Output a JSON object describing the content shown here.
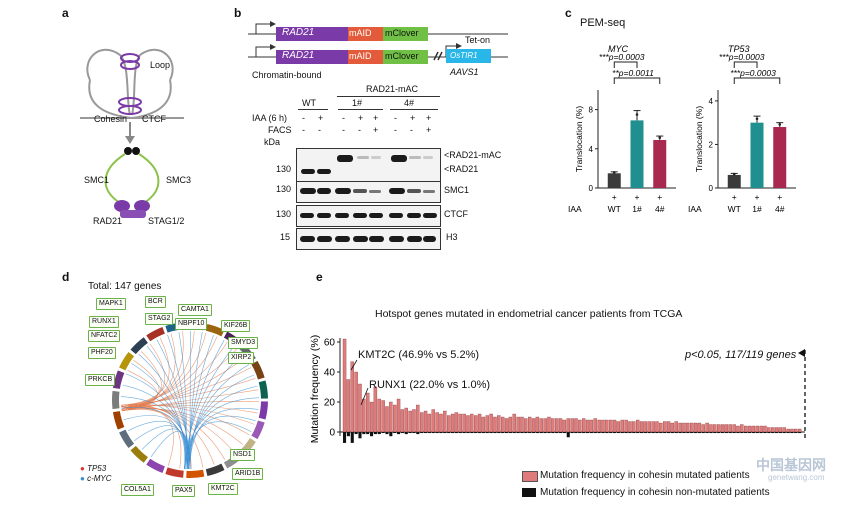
{
  "panels": {
    "a": "a",
    "b": "b",
    "c": "c",
    "d": "d",
    "e": "e"
  },
  "panel_a": {
    "loop": "Loop",
    "cohesin": "Cohesin",
    "ctcf": "CTCF",
    "smc1": "SMC1",
    "smc3": "SMC3",
    "rad21": "RAD21",
    "stag": "STAG1/2"
  },
  "panel_b": {
    "construct_rad21": "RAD21",
    "construct_maid": "mAID",
    "construct_mclover": "mClover",
    "tet_on": "Tet-on",
    "ostir1": "OsTIR1",
    "aavs1": "AAVS1",
    "chromatin_bound": "Chromatin-bound",
    "rad21_mac": "RAD21-mAC",
    "wt": "WT",
    "clone1": "1#",
    "clone4": "4#",
    "iaa_label": "IAA (6 h)",
    "facs_label": "FACS",
    "kda": "kDa",
    "iaa_row": [
      "-",
      "+",
      "-",
      "+",
      "+",
      "-",
      "+",
      "+"
    ],
    "facs_row": [
      "-",
      "-",
      "-",
      "-",
      "+",
      "-",
      "-",
      "+"
    ],
    "blots": [
      {
        "marker": "130",
        "labels": [
          "RAD21-mAC",
          "RAD21"
        ]
      },
      {
        "marker": "130",
        "labels": [
          "SMC1"
        ]
      },
      {
        "marker": "130",
        "labels": [
          "CTCF"
        ]
      },
      {
        "marker": "15",
        "labels": [
          "H3"
        ]
      }
    ]
  },
  "panel_c": {
    "title": "PEM-seq",
    "colors": {
      "WT": "#3a3a3a",
      "1#": "#1f8f8f",
      "4#": "#a8284f"
    },
    "chart_data": [
      {
        "type": "bar",
        "title": "MYC",
        "ylabel": "Translocation (%)",
        "categories": [
          "WT",
          "1#",
          "4#"
        ],
        "iaa": [
          "+",
          "+",
          "+"
        ],
        "values": [
          1.5,
          6.9,
          4.9
        ],
        "errors": [
          0.15,
          1.0,
          0.4
        ],
        "ylim": [
          0,
          10
        ],
        "yticks": [
          "0",
          "4",
          "8"
        ],
        "significance": [
          {
            "text": "***p=0.0003",
            "from": "WT",
            "to": "1#"
          },
          {
            "text": "**p=0.0011",
            "from": "WT",
            "to": "4#"
          }
        ]
      },
      {
        "type": "bar",
        "title": "TP53",
        "ylabel": "Translocation (%)",
        "categories": [
          "WT",
          "1#",
          "4#"
        ],
        "iaa": [
          "+",
          "+",
          "+"
        ],
        "values": [
          0.6,
          3.0,
          2.8
        ],
        "errors": [
          0.07,
          0.3,
          0.2
        ],
        "ylim": [
          0,
          4.5
        ],
        "yticks": [
          "0",
          "2",
          "4"
        ],
        "significance": [
          {
            "text": "***p=0.0003",
            "from": "WT",
            "to": "1#"
          },
          {
            "text": "***p=0.0003",
            "from": "WT",
            "to": "4#"
          }
        ]
      }
    ],
    "iaa_label": "IAA"
  },
  "panel_d": {
    "total": "Total: 147 genes",
    "genes": [
      "MAPK1",
      "BCR",
      "CAMTA1",
      "RUNX1",
      "STAG2",
      "NBPF10",
      "KIF26B",
      "NFATC2",
      "SMYD3",
      "XIRP2",
      "PHF20",
      "PRKCB",
      "NSD1",
      "ARID1B",
      "COL5A1",
      "PAX5",
      "KMT2C"
    ],
    "legend_tp53": "TP53",
    "legend_myc": "c-MYC"
  },
  "panel_e": {
    "chart_data": {
      "type": "bar",
      "title": "Hotspot genes mutated in endometrial cancer patients from TCGA",
      "ylabel": "Mutation frequency (%)",
      "ylim": [
        0,
        60
      ],
      "yticks": [
        "0",
        "20",
        "40",
        "60"
      ],
      "annotation_kmt2c": "KMT2C (46.9% vs 5.2%)",
      "annotation_runx1": "RUNX1 (22.0% vs 1.0%)",
      "threshold_label": "p<0.05, 117/119 genes",
      "series": [
        {
          "name": "Mutation frequency in cohesin mutated patients",
          "color": "#e07b7b",
          "values": [
            62,
            35,
            46.9,
            40,
            32,
            22,
            26,
            20,
            30,
            22,
            21,
            17,
            20,
            18,
            22,
            15,
            16,
            14,
            15,
            18,
            13,
            14,
            12,
            15,
            13,
            12,
            14,
            11,
            12,
            13,
            12,
            12,
            11,
            12,
            11,
            12,
            10,
            11,
            12,
            10,
            11,
            10,
            9,
            10,
            12,
            10,
            10,
            9,
            10,
            9,
            10,
            9,
            9,
            10,
            9,
            9,
            9,
            8,
            9,
            9,
            9,
            8,
            9,
            8,
            8,
            9,
            8,
            8,
            8,
            8,
            8,
            7,
            8,
            8,
            7,
            7,
            8,
            7,
            7,
            7,
            7,
            7,
            6,
            7,
            7,
            6,
            7,
            6,
            6,
            6,
            6,
            6,
            6,
            5,
            6,
            5,
            5,
            5,
            5,
            5,
            5,
            5,
            4,
            5,
            4,
            4,
            4,
            4,
            4,
            4,
            3,
            3,
            3,
            3,
            3,
            2,
            2,
            2,
            2
          ]
        },
        {
          "name": "Mutation frequency in cohesin non-mutated patients",
          "color": "#111111",
          "values": [
            5.2,
            2,
            5.2,
            1,
            3,
            1.0,
            1,
            2,
            1,
            1,
            0.5,
            1,
            2,
            0.5,
            1,
            0.5,
            1,
            0.5,
            0.5,
            1,
            0.5,
            0.5,
            0.5,
            0.5,
            0.5,
            0.5,
            0.5,
            0.5,
            0.5,
            0.5,
            0.5,
            0.5,
            0.5,
            0.5,
            0.5,
            0.5,
            0.5,
            0.5,
            0.5,
            0.5,
            0.5,
            0.5,
            0.5,
            0.5,
            0.5,
            0.5,
            0.5,
            0.5,
            0.5,
            0.5,
            0.5,
            0.5,
            0.5,
            0.5,
            0.5,
            0.5,
            0.5,
            0.5,
            2.5,
            0.5,
            0.5,
            0.5,
            0.5,
            0.5,
            0.5,
            0.5,
            0.5,
            0.5,
            0.5,
            0.5,
            0.5,
            0.5,
            0.5,
            0.5,
            0.5,
            0.5,
            0.5,
            0.5,
            0.5,
            0.5,
            0.5,
            0.5,
            0.5,
            0.5,
            0.5,
            0.5,
            0.5,
            0.5,
            0.5,
            0.5,
            0.5,
            0.5,
            0.5,
            0.5,
            0.5,
            0.5,
            0.5,
            0.5,
            0.5,
            0.5,
            0.5,
            0.5,
            0.5,
            0.5,
            0.5,
            0.5,
            0.5,
            0.5,
            0.5,
            0.5,
            0.5,
            0.5,
            0.5,
            0.5,
            0.5,
            0.5,
            0.5,
            0.5,
            0.5
          ]
        }
      ]
    }
  },
  "watermark": {
    "cn": "中国基因网",
    "url": "genetwang.com"
  }
}
